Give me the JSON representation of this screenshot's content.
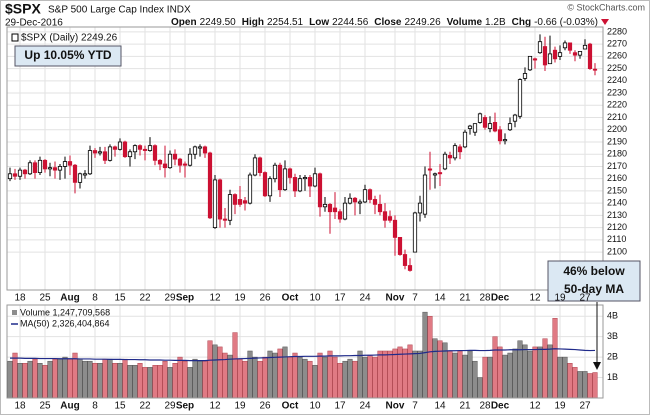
{
  "chart_data": {
    "type": "candlestick",
    "title": "$SPX",
    "subtitle": "S&P 500 Large Cap Index INDX",
    "date": "29-Dec-2016",
    "credit": "© StockCharts.com",
    "quote": [
      {
        "label": "Open",
        "value": "2249.50"
      },
      {
        "label": "High",
        "value": "2254.51"
      },
      {
        "label": "Low",
        "value": "2244.56"
      },
      {
        "label": "Close",
        "value": "2249.26"
      },
      {
        "label": "Volume",
        "value": "1.2B"
      },
      {
        "label": "Chg",
        "value": "-0.66 (-0.03%)"
      }
    ],
    "legend_label": "$SPX (Daily) 2249.26",
    "annotations": [
      "Up 10.05% YTD",
      "46% below",
      "50-day MA"
    ],
    "categories": [
      null,
      null,
      "18",
      null,
      null,
      null,
      null,
      "25",
      null,
      null,
      null,
      null,
      "Aug",
      null,
      null,
      null,
      null,
      "8",
      null,
      null,
      null,
      null,
      "15",
      null,
      null,
      null,
      null,
      "22",
      null,
      null,
      null,
      null,
      "29",
      null,
      null,
      "Sep",
      null,
      null,
      null,
      null,
      null,
      "12",
      null,
      null,
      null,
      null,
      "19",
      null,
      null,
      null,
      null,
      "26",
      null,
      null,
      null,
      null,
      "Oct",
      null,
      null,
      null,
      null,
      "10",
      null,
      null,
      null,
      null,
      "17",
      null,
      null,
      null,
      null,
      "24",
      null,
      null,
      null,
      null,
      null,
      "Nov",
      null,
      null,
      null,
      "7",
      null,
      null,
      null,
      null,
      "14",
      null,
      null,
      null,
      null,
      "21",
      null,
      null,
      null,
      "28",
      null,
      null,
      "Dec",
      null,
      null,
      null,
      null,
      null,
      null,
      "12",
      null,
      null,
      null,
      null,
      "19",
      null,
      null,
      null,
      null,
      "27",
      null,
      null
    ],
    "ohlc": [
      [
        2160,
        2169,
        2158,
        2164
      ],
      [
        2164,
        2168,
        2159,
        2162
      ],
      [
        2162,
        2169,
        2159,
        2167
      ],
      [
        2167,
        2168,
        2160,
        2164
      ],
      [
        2164,
        2175,
        2163,
        2173
      ],
      [
        2173,
        2175,
        2160,
        2165
      ],
      [
        2165,
        2178,
        2163,
        2175
      ],
      [
        2175,
        2176,
        2165,
        2168
      ],
      [
        2168,
        2173,
        2162,
        2169
      ],
      [
        2169,
        2174,
        2160,
        2167
      ],
      [
        2167,
        2172,
        2159,
        2170
      ],
      [
        2170,
        2178,
        2160,
        2174
      ],
      [
        2174,
        2179,
        2163,
        2171
      ],
      [
        2171,
        2172,
        2148,
        2157
      ],
      [
        2157,
        2165,
        2152,
        2164
      ],
      [
        2163,
        2167,
        2160,
        2164
      ],
      [
        2164,
        2187,
        2163,
        2183
      ],
      [
        2183,
        2185,
        2177,
        2181
      ],
      [
        2181,
        2186,
        2179,
        2182
      ],
      [
        2182,
        2186,
        2172,
        2175
      ],
      [
        2175,
        2188,
        2174,
        2186
      ],
      [
        2186,
        2187,
        2178,
        2184
      ],
      [
        2184,
        2193,
        2183,
        2190
      ],
      [
        2190,
        2191,
        2177,
        2178
      ],
      [
        2178,
        2184,
        2170,
        2182
      ],
      [
        2182,
        2188,
        2176,
        2187
      ],
      [
        2187,
        2188,
        2179,
        2184
      ],
      [
        2184,
        2187,
        2175,
        2183
      ],
      [
        2183,
        2194,
        2182,
        2187
      ],
      [
        2187,
        2188,
        2171,
        2175
      ],
      [
        2175,
        2176,
        2167,
        2172
      ],
      [
        2172,
        2187,
        2161,
        2169
      ],
      [
        2169,
        2183,
        2168,
        2180
      ],
      [
        2180,
        2184,
        2171,
        2176
      ],
      [
        2176,
        2177,
        2165,
        2171
      ],
      [
        2172,
        2174,
        2161,
        2171
      ],
      [
        2171,
        2185,
        2170,
        2180
      ],
      [
        2180,
        2187,
        2176,
        2186
      ],
      [
        2185,
        2188,
        2178,
        2186
      ],
      [
        2186,
        2187,
        2177,
        2181
      ],
      [
        2181,
        2182,
        2127,
        2128
      ],
      [
        2120,
        2163,
        2119,
        2159
      ],
      [
        2159,
        2160,
        2120,
        2127
      ],
      [
        2127,
        2136,
        2120,
        2126
      ],
      [
        2126,
        2151,
        2122,
        2147
      ],
      [
        2147,
        2148,
        2131,
        2139
      ],
      [
        2143,
        2154,
        2137,
        2139
      ],
      [
        2142,
        2145,
        2134,
        2140
      ],
      [
        2140,
        2165,
        2139,
        2163
      ],
      [
        2163,
        2180,
        2162,
        2177
      ],
      [
        2177,
        2178,
        2162,
        2165
      ],
      [
        2165,
        2166,
        2145,
        2146
      ],
      [
        2146,
        2162,
        2141,
        2160
      ],
      [
        2160,
        2173,
        2157,
        2171
      ],
      [
        2171,
        2173,
        2145,
        2151
      ],
      [
        2151,
        2175,
        2150,
        2168
      ],
      [
        2168,
        2169,
        2156,
        2161
      ],
      [
        2161,
        2164,
        2145,
        2150
      ],
      [
        2150,
        2163,
        2149,
        2160
      ],
      [
        2160,
        2163,
        2150,
        2161
      ],
      [
        2161,
        2163,
        2145,
        2154
      ],
      [
        2154,
        2169,
        2153,
        2164
      ],
      [
        2164,
        2165,
        2129,
        2137
      ],
      [
        2137,
        2145,
        2133,
        2139
      ],
      [
        2139,
        2140,
        2115,
        2133
      ],
      [
        2136,
        2149,
        2127,
        2133
      ],
      [
        2133,
        2135,
        2124,
        2127
      ],
      [
        2127,
        2145,
        2126,
        2140
      ],
      [
        2140,
        2148,
        2139,
        2144
      ],
      [
        2144,
        2145,
        2130,
        2141
      ],
      [
        2140,
        2143,
        2131,
        2141
      ],
      [
        2141,
        2155,
        2140,
        2151
      ],
      [
        2151,
        2152,
        2140,
        2143
      ],
      [
        2143,
        2146,
        2131,
        2139
      ],
      [
        2139,
        2147,
        2130,
        2133
      ],
      [
        2133,
        2140,
        2120,
        2126
      ],
      [
        2129,
        2134,
        2124,
        2126
      ],
      [
        2126,
        2130,
        2097,
        2112
      ],
      [
        2112,
        2112,
        2097,
        2098
      ],
      [
        2098,
        2102,
        2086,
        2089
      ],
      [
        2089,
        2095,
        2084,
        2085
      ],
      [
        2100,
        2133,
        2100,
        2132
      ],
      [
        2132,
        2146,
        2125,
        2140
      ],
      [
        2131,
        2170,
        2128,
        2163
      ],
      [
        2168,
        2182,
        2151,
        2167
      ],
      [
        2163,
        2165,
        2152,
        2164
      ],
      [
        2165,
        2172,
        2154,
        2164
      ],
      [
        2168,
        2182,
        2167,
        2180
      ],
      [
        2179,
        2182,
        2172,
        2177
      ],
      [
        2177,
        2189,
        2175,
        2187
      ],
      [
        2186,
        2188,
        2176,
        2182
      ],
      [
        2186,
        2200,
        2185,
        2198
      ],
      [
        2201,
        2204,
        2196,
        2203
      ],
      [
        2198,
        2205,
        2195,
        2205
      ],
      [
        2206,
        2214,
        2205,
        2213
      ],
      [
        2210,
        2212,
        2200,
        2202
      ],
      [
        2201,
        2211,
        2198,
        2205
      ],
      [
        2206,
        2214,
        2198,
        2199
      ],
      [
        2200,
        2203,
        2188,
        2191
      ],
      [
        2191,
        2197,
        2188,
        2192
      ],
      [
        2200,
        2210,
        2199,
        2205
      ],
      [
        2207,
        2213,
        2202,
        2212
      ],
      [
        2211,
        2242,
        2209,
        2241
      ],
      [
        2242,
        2251,
        2240,
        2246
      ],
      [
        2249,
        2260,
        2248,
        2260
      ],
      [
        2258,
        2259,
        2250,
        2257
      ],
      [
        2263,
        2278,
        2262,
        2272
      ],
      [
        2268,
        2276,
        2248,
        2253
      ],
      [
        2254,
        2277,
        2254,
        2262
      ],
      [
        2265,
        2268,
        2255,
        2258
      ],
      [
        2260,
        2269,
        2257,
        2263
      ],
      [
        2267,
        2273,
        2265,
        2271
      ],
      [
        2271,
        2271,
        2262,
        2265
      ],
      [
        2263,
        2265,
        2256,
        2261
      ],
      [
        2261,
        2264,
        2258,
        2264
      ],
      [
        2266,
        2274,
        2266,
        2269
      ],
      [
        2270,
        2271,
        2249,
        2250
      ],
      [
        2249.5,
        2254.51,
        2244.56,
        2249.26
      ]
    ],
    "ylim": [
      2069,
      2284
    ],
    "yticks": [
      2100,
      2110,
      2120,
      2130,
      2140,
      2150,
      2160,
      2170,
      2180,
      2190,
      2200,
      2210,
      2220,
      2230,
      2240,
      2250,
      2260,
      2270,
      2280
    ],
    "up_color": "#000000",
    "down_color": "#cc1133",
    "grid": true,
    "volume": {
      "label": "Volume 1,247,709,568",
      "values": [
        1.8,
        2.2,
        1.7,
        1.7,
        1.8,
        1.9,
        1.7,
        1.6,
        1.8,
        1.9,
        1.9,
        2.0,
        1.9,
        2.2,
        1.9,
        1.8,
        1.8,
        1.7,
        1.7,
        1.9,
        1.9,
        1.7,
        1.7,
        1.9,
        1.6,
        1.6,
        1.7,
        1.5,
        1.5,
        1.6,
        1.6,
        1.8,
        1.5,
        1.7,
        2.0,
        1.8,
        1.5,
        1.9,
        1.8,
        1.8,
        2.8,
        2.6,
        2.5,
        2.2,
        2.1,
        3.2,
        1.9,
        1.8,
        2.3,
        2.0,
        1.8,
        2.0,
        2.3,
        2.2,
        2.4,
        2.5,
        2.0,
        2.2,
        2.0,
        1.9,
        1.8,
        1.6,
        2.2,
        2.0,
        2.3,
        2.0,
        1.7,
        1.8,
        1.9,
        1.8,
        2.3,
        2.0,
        2.1,
        2.0,
        2.3,
        2.3,
        2.3,
        2.4,
        2.5,
        2.4,
        2.6,
        2.3,
        2.3,
        4.2,
        4.0,
        2.9,
        2.8,
        2.7,
        2.3,
        2.2,
        2.3,
        2.1,
        2.3,
        1.8,
        1.0,
        2.0,
        2.0,
        3.0,
        2.5,
        2.1,
        2.2,
        2.4,
        2.8,
        2.6,
        2.3,
        2.5,
        2.5,
        2.9,
        2.6,
        3.9,
        2.0,
        2.0,
        1.7,
        1.5,
        1.3,
        1.3,
        1.2,
        1.247709568
      ],
      "ylim": [
        0,
        4.55
      ],
      "yticks": [
        {
          "value": 1,
          "label": "1B"
        },
        {
          "value": 2,
          "label": "2B"
        },
        {
          "value": 3,
          "label": "3B"
        },
        {
          "value": 4,
          "label": "4B"
        }
      ],
      "up_color": "#8c8c8c",
      "down_color": "#e07a84",
      "ma": {
        "name": "MA(50) 2,326,404,864",
        "color": "#1f2a8a",
        "values": [
          1.95,
          1.95,
          1.95,
          1.94,
          1.94,
          1.94,
          1.93,
          1.93,
          1.93,
          1.93,
          1.92,
          1.92,
          1.92,
          1.92,
          1.91,
          1.91,
          1.91,
          1.9,
          1.9,
          1.9,
          1.89,
          1.89,
          1.89,
          1.88,
          1.88,
          1.88,
          1.87,
          1.87,
          1.86,
          1.86,
          1.86,
          1.85,
          1.85,
          1.84,
          1.84,
          1.84,
          1.83,
          1.83,
          1.83,
          1.83,
          1.85,
          1.86,
          1.87,
          1.88,
          1.9,
          1.91,
          1.92,
          1.93,
          1.94,
          1.95,
          1.96,
          1.97,
          1.98,
          1.99,
          2.0,
          2.01,
          2.02,
          2.03,
          2.03,
          2.04,
          2.04,
          2.04,
          2.05,
          2.05,
          2.06,
          2.06,
          2.06,
          2.07,
          2.07,
          2.08,
          2.08,
          2.09,
          2.09,
          2.1,
          2.11,
          2.11,
          2.12,
          2.13,
          2.14,
          2.15,
          2.16,
          2.17,
          2.18,
          2.22,
          2.26,
          2.28,
          2.29,
          2.3,
          2.31,
          2.31,
          2.32,
          2.32,
          2.33,
          2.33,
          2.32,
          2.32,
          2.33,
          2.35,
          2.35,
          2.35,
          2.36,
          2.36,
          2.36,
          2.37,
          2.37,
          2.37,
          2.38,
          2.38,
          2.39,
          2.41,
          2.4,
          2.39,
          2.38,
          2.37,
          2.35,
          2.33,
          2.32,
          2.326404864
        ]
      }
    }
  }
}
